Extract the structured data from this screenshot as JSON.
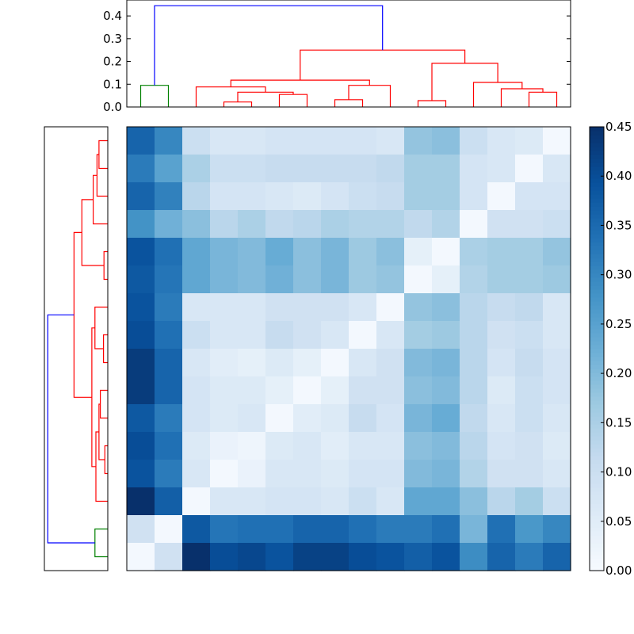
{
  "chart_data": [
    {
      "type": "heatmap",
      "title": "",
      "n": 16,
      "colormap": "Blues",
      "colorbar": {
        "range": [
          0.0,
          0.45
        ],
        "ticks": [
          "0.00",
          "0.05",
          "0.10",
          "0.15",
          "0.20",
          "0.25",
          "0.30",
          "0.35",
          "0.40",
          "0.45"
        ]
      },
      "values": [
        [
          0.36,
          0.3,
          0.1,
          0.07,
          0.07,
          0.08,
          0.08,
          0.08,
          0.08,
          0.07,
          0.18,
          0.19,
          0.1,
          0.07,
          0.06,
          0.01
        ],
        [
          0.32,
          0.25,
          0.15,
          0.1,
          0.1,
          0.11,
          0.11,
          0.11,
          0.11,
          0.12,
          0.16,
          0.16,
          0.08,
          0.07,
          0.01,
          0.07
        ],
        [
          0.36,
          0.31,
          0.13,
          0.08,
          0.08,
          0.07,
          0.06,
          0.08,
          0.1,
          0.11,
          0.16,
          0.16,
          0.08,
          0.01,
          0.08,
          0.08
        ],
        [
          0.28,
          0.22,
          0.19,
          0.13,
          0.15,
          0.12,
          0.13,
          0.15,
          0.14,
          0.14,
          0.12,
          0.14,
          0.01,
          0.09,
          0.09,
          0.1
        ],
        [
          0.39,
          0.34,
          0.24,
          0.21,
          0.2,
          0.23,
          0.19,
          0.21,
          0.17,
          0.19,
          0.04,
          0.01,
          0.15,
          0.16,
          0.16,
          0.18
        ],
        [
          0.38,
          0.33,
          0.24,
          0.21,
          0.2,
          0.22,
          0.19,
          0.21,
          0.17,
          0.18,
          0.01,
          0.04,
          0.14,
          0.16,
          0.16,
          0.17
        ],
        [
          0.39,
          0.32,
          0.07,
          0.07,
          0.07,
          0.09,
          0.09,
          0.09,
          0.07,
          0.01,
          0.18,
          0.19,
          0.13,
          0.11,
          0.12,
          0.07
        ],
        [
          0.4,
          0.34,
          0.1,
          0.07,
          0.07,
          0.11,
          0.09,
          0.07,
          0.01,
          0.07,
          0.16,
          0.17,
          0.13,
          0.09,
          0.1,
          0.07
        ],
        [
          0.43,
          0.36,
          0.07,
          0.05,
          0.04,
          0.06,
          0.04,
          0.01,
          0.07,
          0.09,
          0.2,
          0.21,
          0.13,
          0.08,
          0.11,
          0.08
        ],
        [
          0.43,
          0.36,
          0.08,
          0.06,
          0.06,
          0.04,
          0.01,
          0.04,
          0.09,
          0.09,
          0.19,
          0.2,
          0.13,
          0.06,
          0.1,
          0.08
        ],
        [
          0.38,
          0.32,
          0.08,
          0.06,
          0.07,
          0.01,
          0.05,
          0.06,
          0.11,
          0.08,
          0.21,
          0.23,
          0.12,
          0.07,
          0.1,
          0.07
        ],
        [
          0.4,
          0.34,
          0.06,
          0.03,
          0.02,
          0.06,
          0.07,
          0.05,
          0.07,
          0.07,
          0.19,
          0.2,
          0.13,
          0.08,
          0.09,
          0.06
        ],
        [
          0.39,
          0.32,
          0.07,
          0.01,
          0.03,
          0.07,
          0.07,
          0.06,
          0.08,
          0.08,
          0.2,
          0.21,
          0.14,
          0.09,
          0.09,
          0.07
        ],
        [
          0.45,
          0.37,
          0.01,
          0.07,
          0.07,
          0.08,
          0.08,
          0.07,
          0.1,
          0.07,
          0.24,
          0.24,
          0.19,
          0.13,
          0.16,
          0.1
        ],
        [
          0.09,
          0.01,
          0.38,
          0.33,
          0.34,
          0.34,
          0.36,
          0.36,
          0.34,
          0.32,
          0.32,
          0.34,
          0.21,
          0.34,
          0.27,
          0.3
        ],
        [
          0.01,
          0.09,
          0.45,
          0.4,
          0.41,
          0.39,
          0.42,
          0.42,
          0.4,
          0.39,
          0.37,
          0.39,
          0.29,
          0.36,
          0.32,
          0.36
        ]
      ]
    },
    {
      "type": "dendrogram",
      "orientation": "top",
      "yticks": [
        "0.0",
        "0.1",
        "0.2",
        "0.3",
        "0.4"
      ],
      "ylim": [
        0,
        0.47
      ],
      "links": [
        {
          "x": [
            0.5,
            0.5,
            1.5,
            1.5
          ],
          "y": [
            0,
            0.095,
            0.095,
            0
          ],
          "color": "#008000"
        },
        {
          "x": [
            3.5,
            3.5,
            4.5,
            4.5
          ],
          "y": [
            0,
            0.022,
            0.022,
            0
          ],
          "color": "#ff0000"
        },
        {
          "x": [
            5.5,
            5.5,
            6.5,
            6.5
          ],
          "y": [
            0,
            0.055,
            0.055,
            0
          ],
          "color": "#ff0000"
        },
        {
          "x": [
            4.0,
            4.0,
            6.0,
            6.0
          ],
          "y": [
            0.022,
            0.065,
            0.065,
            0.055
          ],
          "color": "#ff0000"
        },
        {
          "x": [
            7.5,
            7.5,
            8.5,
            8.5
          ],
          "y": [
            0,
            0.032,
            0.032,
            0
          ],
          "color": "#ff0000"
        },
        {
          "x": [
            2.5,
            2.5,
            5.0,
            5.0
          ],
          "y": [
            0,
            0.088,
            0.088,
            0.065
          ],
          "color": "#ff0000"
        },
        {
          "x": [
            10.5,
            10.5,
            11.5,
            11.5
          ],
          "y": [
            0,
            0.028,
            0.028,
            0
          ],
          "color": "#ff0000"
        },
        {
          "x": [
            14.5,
            14.5,
            15.5,
            15.5
          ],
          "y": [
            0,
            0.065,
            0.065,
            0
          ],
          "color": "#ff0000"
        },
        {
          "x": [
            13.5,
            13.5,
            15.0,
            15.0
          ],
          "y": [
            0,
            0.08,
            0.08,
            0.065
          ],
          "color": "#ff0000"
        },
        {
          "x": [
            12.5,
            12.5,
            14.25,
            14.25
          ],
          "y": [
            0,
            0.108,
            0.108,
            0.08
          ],
          "color": "#ff0000"
        },
        {
          "x": [
            11.0,
            11.0,
            13.375,
            13.375
          ],
          "y": [
            0.028,
            0.192,
            0.192,
            0.108
          ],
          "color": "#ff0000"
        },
        {
          "x": [
            8.0,
            8.0,
            9.5,
            9.5
          ],
          "y": [
            0.032,
            0.095,
            0.095,
            0
          ],
          "color": "#ff0000"
        },
        {
          "x": [
            3.75,
            3.75,
            8.75,
            8.75
          ],
          "y": [
            0.088,
            0.118,
            0.118,
            0.095
          ],
          "color": "#ff0000"
        },
        {
          "x": [
            6.25,
            6.25,
            12.1875,
            12.1875
          ],
          "y": [
            0.118,
            0.25,
            0.25,
            0.192
          ],
          "color": "#ff0000"
        },
        {
          "x": [
            1.0,
            1.0,
            9.21875,
            9.21875
          ],
          "y": [
            0.095,
            0.445,
            0.445,
            0.25
          ],
          "color": "#0000ff"
        }
      ]
    },
    {
      "type": "dendrogram",
      "orientation": "left",
      "xlim": [
        0,
        0.47
      ],
      "links": [
        {
          "x": [
            0.5,
            0.5,
            1.5,
            1.5
          ],
          "y": [
            0,
            0.095,
            0.095,
            0
          ],
          "color": "#008000"
        },
        {
          "x": [
            3.5,
            3.5,
            4.5,
            4.5
          ],
          "y": [
            0,
            0.022,
            0.022,
            0
          ],
          "color": "#ff0000"
        },
        {
          "x": [
            5.5,
            5.5,
            6.5,
            6.5
          ],
          "y": [
            0,
            0.055,
            0.055,
            0
          ],
          "color": "#ff0000"
        },
        {
          "x": [
            4.0,
            4.0,
            6.0,
            6.0
          ],
          "y": [
            0.022,
            0.065,
            0.065,
            0.055
          ],
          "color": "#ff0000"
        },
        {
          "x": [
            7.5,
            7.5,
            8.5,
            8.5
          ],
          "y": [
            0,
            0.032,
            0.032,
            0
          ],
          "color": "#ff0000"
        },
        {
          "x": [
            2.5,
            2.5,
            5.0,
            5.0
          ],
          "y": [
            0,
            0.088,
            0.088,
            0.065
          ],
          "color": "#ff0000"
        },
        {
          "x": [
            10.5,
            10.5,
            11.5,
            11.5
          ],
          "y": [
            0,
            0.028,
            0.028,
            0
          ],
          "color": "#ff0000"
        },
        {
          "x": [
            14.5,
            14.5,
            15.5,
            15.5
          ],
          "y": [
            0,
            0.065,
            0.065,
            0
          ],
          "color": "#ff0000"
        },
        {
          "x": [
            13.5,
            13.5,
            15.0,
            15.0
          ],
          "y": [
            0,
            0.08,
            0.08,
            0.065
          ],
          "color": "#ff0000"
        },
        {
          "x": [
            12.5,
            12.5,
            14.25,
            14.25
          ],
          "y": [
            0,
            0.108,
            0.108,
            0.08
          ],
          "color": "#ff0000"
        },
        {
          "x": [
            11.0,
            11.0,
            13.375,
            13.375
          ],
          "y": [
            0.028,
            0.192,
            0.192,
            0.108
          ],
          "color": "#ff0000"
        },
        {
          "x": [
            8.0,
            8.0,
            9.5,
            9.5
          ],
          "y": [
            0.032,
            0.095,
            0.095,
            0
          ],
          "color": "#ff0000"
        },
        {
          "x": [
            3.75,
            3.75,
            8.75,
            8.75
          ],
          "y": [
            0.088,
            0.118,
            0.118,
            0.095
          ],
          "color": "#ff0000"
        },
        {
          "x": [
            6.25,
            6.25,
            12.1875,
            12.1875
          ],
          "y": [
            0.118,
            0.25,
            0.25,
            0.192
          ],
          "color": "#ff0000"
        },
        {
          "x": [
            1.0,
            1.0,
            9.21875,
            9.21875
          ],
          "y": [
            0.095,
            0.445,
            0.445,
            0.25
          ],
          "color": "#0000ff"
        }
      ]
    }
  ]
}
